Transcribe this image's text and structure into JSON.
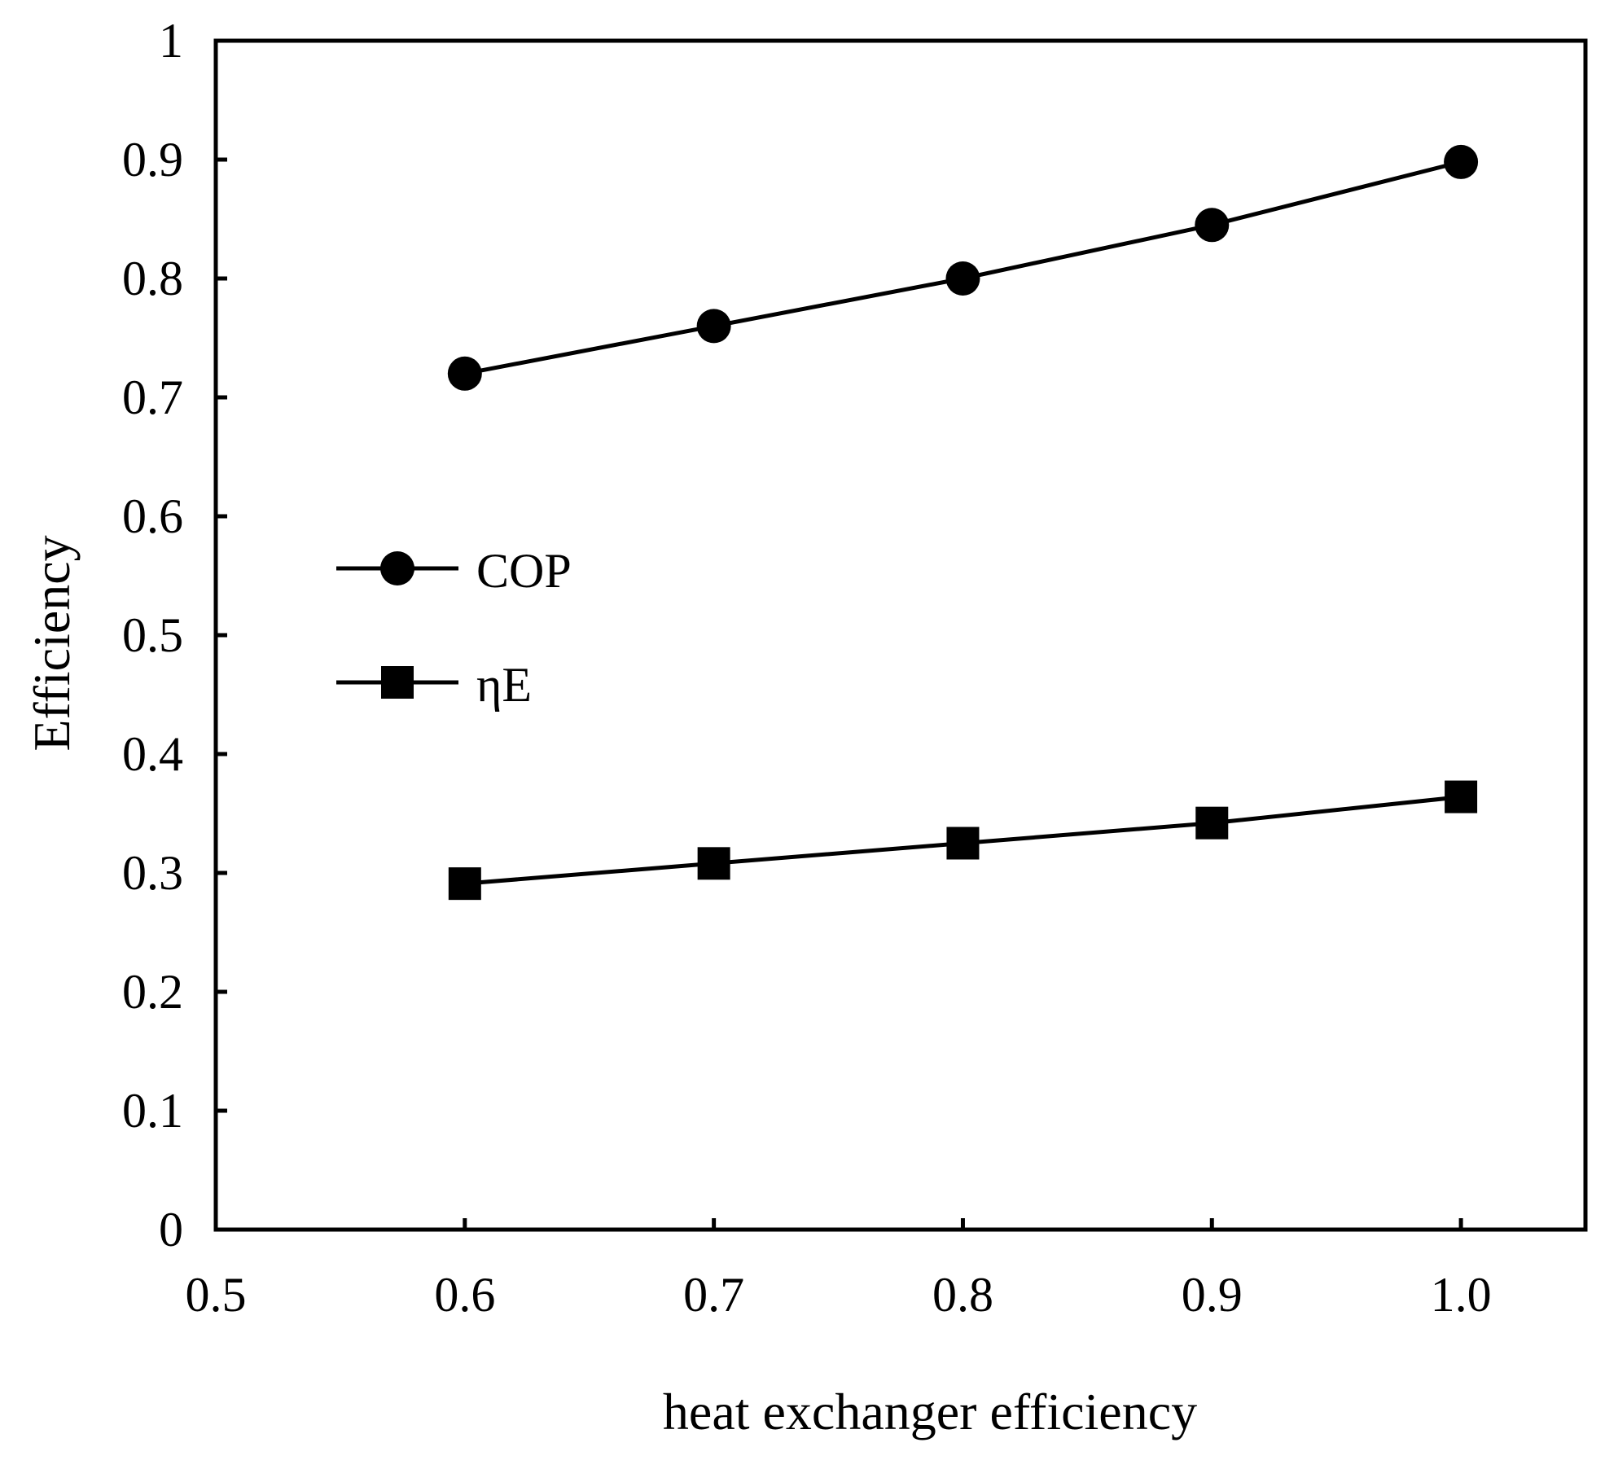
{
  "chart_data": {
    "type": "line",
    "title": "",
    "xlabel": "heat exchanger efficiency",
    "ylabel": "Efficiency",
    "xlim": [
      0.5,
      1.05
    ],
    "ylim": [
      0,
      1
    ],
    "grid": false,
    "legend_position": "center-left",
    "x_tick_values": [
      0.5,
      0.6,
      0.7,
      0.8,
      0.9,
      1.0
    ],
    "x_tick_labels": [
      "0.5",
      "0.6",
      "0.7",
      "0.8",
      "0.9",
      "1.0"
    ],
    "y_tick_values": [
      0,
      0.1,
      0.2,
      0.3,
      0.4,
      0.5,
      0.6,
      0.7,
      0.8,
      0.9,
      1
    ],
    "y_tick_labels": [
      "0",
      "0.1",
      "0.2",
      "0.3",
      "0.4",
      "0.5",
      "0.6",
      "0.7",
      "0.8",
      "0.9",
      "1"
    ],
    "x": [
      0.6,
      0.7,
      0.8,
      0.9,
      1.0
    ],
    "series": [
      {
        "name": "COP",
        "marker": "circle",
        "color": "#000000",
        "values": [
          0.72,
          0.76,
          0.8,
          0.845,
          0.898
        ]
      },
      {
        "name": "ηE",
        "marker": "square",
        "color": "#000000",
        "values": [
          0.291,
          0.308,
          0.325,
          0.342,
          0.364
        ]
      }
    ]
  }
}
